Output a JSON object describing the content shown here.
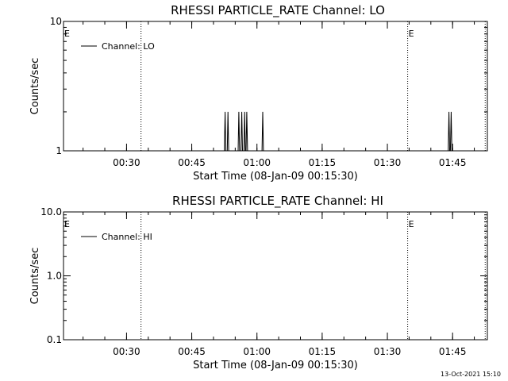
{
  "chart_data": [
    {
      "type": "line",
      "title": "RHESSI PARTICLE_RATE Channel: LO",
      "xlabel": "Start Time (08-Jan-09 00:15:30)",
      "ylabel": "Counts/sec",
      "yscale": "log",
      "ylim": [
        1,
        10
      ],
      "yticks": [
        1,
        10
      ],
      "ytick_labels": [
        "1",
        "10"
      ],
      "xlim": [
        "00:15:30",
        "01:53:00"
      ],
      "xticks": [
        "00:30",
        "00:45",
        "01:00",
        "01:15",
        "01:30",
        "01:45"
      ],
      "grid": false,
      "legend_position": "top-left",
      "series": [
        {
          "name": "Channel: LO",
          "x": [
            "00:52:30",
            "00:52:40",
            "00:52:50",
            "00:53:10",
            "00:53:20",
            "00:53:30",
            "00:55:40",
            "00:55:50",
            "00:56:00",
            "00:56:20",
            "00:56:30",
            "00:56:40",
            "00:57:00",
            "00:57:10",
            "00:57:20",
            "00:57:30",
            "00:57:40",
            "00:57:50",
            "01:01:10",
            "01:01:20",
            "01:01:30",
            "01:44:00",
            "01:44:10",
            "01:44:20",
            "01:44:30",
            "01:44:40",
            "01:44:50"
          ],
          "y": [
            1,
            2,
            1,
            1,
            2,
            1,
            1,
            2,
            1,
            1,
            2,
            1,
            1,
            2,
            1,
            1,
            2,
            1,
            1,
            2,
            1,
            1,
            2,
            1,
            1,
            2,
            1
          ]
        }
      ],
      "vlines": [
        {
          "x": "00:33:20",
          "label": ""
        },
        {
          "x": "01:34:40",
          "label": "E"
        },
        {
          "x": "01:52:30",
          "label": ""
        }
      ],
      "corner_marker": "E"
    },
    {
      "type": "line",
      "title": "RHESSI PARTICLE_RATE Channel: HI",
      "xlabel": "Start Time (08-Jan-09 00:15:30)",
      "ylabel": "Counts/sec",
      "yscale": "log",
      "ylim": [
        0.1,
        10
      ],
      "yticks": [
        0.1,
        1,
        10
      ],
      "ytick_labels": [
        "0.1",
        "1.0",
        "10.0"
      ],
      "xlim": [
        "00:15:30",
        "01:53:00"
      ],
      "xticks": [
        "00:30",
        "00:45",
        "01:00",
        "01:15",
        "01:30",
        "01:45"
      ],
      "grid": false,
      "legend_position": "top-left",
      "series": [
        {
          "name": "Channel: HI",
          "x": [],
          "y": []
        }
      ],
      "vlines": [
        {
          "x": "00:33:20",
          "label": ""
        },
        {
          "x": "01:34:40",
          "label": "E"
        },
        {
          "x": "01:52:30",
          "label": ""
        }
      ],
      "corner_marker": "E"
    }
  ],
  "footer": {
    "timestamp": "13-Oct-2021 15:10"
  }
}
